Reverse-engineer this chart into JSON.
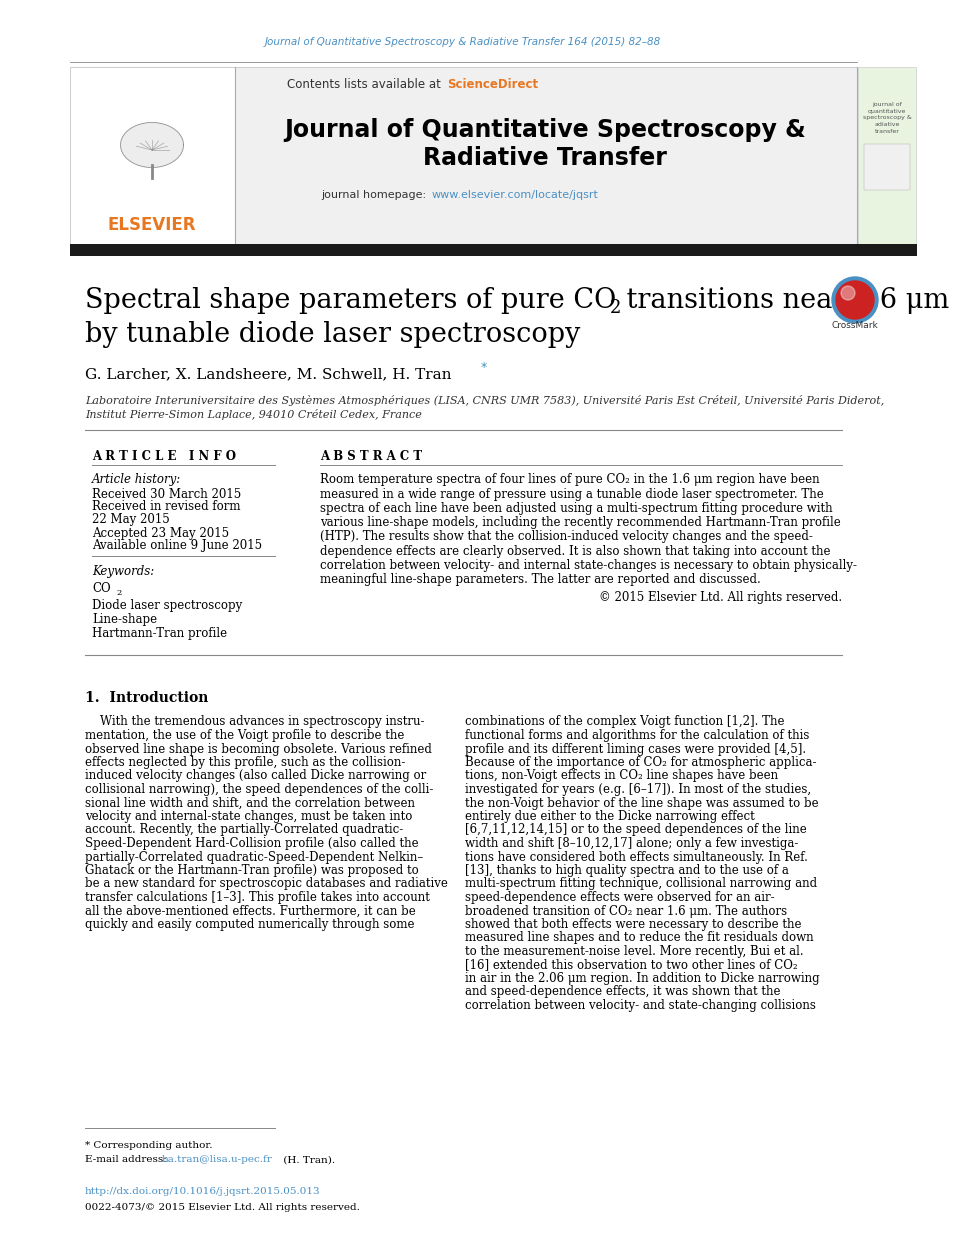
{
  "page_width": 9.07,
  "page_height": 12.38,
  "bg_color": "#ffffff",
  "journal_ref_text": "Journal of Quantitative Spectroscopy & Radiative Transfer 164 (2015) 82–88",
  "journal_ref_color": "#4a90c4",
  "sciencedirect_color": "#e87722",
  "elsevier_color": "#e87722",
  "journal_title_line1": "Journal of Quantitative Spectroscopy &",
  "journal_title_line2": "Radiative Transfer",
  "journal_homepage_url": "www.elsevier.com/locate/jqsrt",
  "journal_homepage_color": "#4a90c4",
  "paper_title_line1a": "Spectral shape parameters of pure CO",
  "paper_title_line1b": " transitions near 1.6 μm",
  "paper_title_line2": "by tunable diode laser spectroscopy",
  "authors": "G. Larcher, X. Landsheere, M. Schwell, H. Tran",
  "affiliation1": "Laboratoire Interuniversitaire des Systèmes Atmosphériques (LISA, CNRS UMR 7583), Université Paris Est Créteil, Université Paris Diderot,",
  "affiliation2": "Institut Pierre-Simon Laplace, 94010 Créteil Cedex, France",
  "article_info_title": "A R T I C L E   I N F O",
  "article_history_label": "Article history:",
  "received_text": "Received 30 March 2015",
  "revised_text": "Received in revised form",
  "revised_date": "22 May 2015",
  "accepted_text": "Accepted 23 May 2015",
  "online_text": "Available online 9 June 2015",
  "keywords_label": "Keywords:",
  "keyword2": "Diode laser spectroscopy",
  "keyword3": "Line-shape",
  "keyword4": "Hartmann-Tran profile",
  "abstract_title": "A B S T R A C T",
  "copyright_text": "© 2015 Elsevier Ltd. All rights reserved.",
  "intro_heading": "1.  Introduction",
  "footnote_star": "* Corresponding author.",
  "footnote_doi": "http://dx.doi.org/10.1016/j.jqsrt.2015.05.013",
  "footnote_issn": "0022-4073/© 2015 Elsevier Ltd. All rights reserved.",
  "text_color": "#000000",
  "link_color": "#4a90c4",
  "black_bar_color": "#1a1a1a"
}
